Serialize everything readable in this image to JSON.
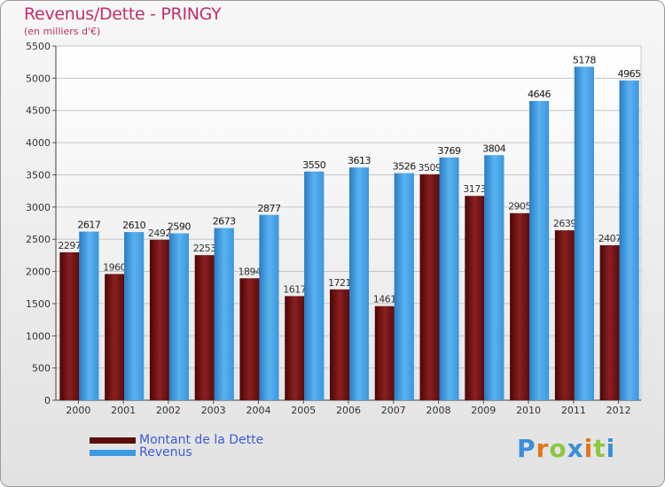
{
  "title": "Revenus/Dette - PRINGY",
  "subtitle": "(en milliers d'€)",
  "logo": "Proxiti",
  "colors": {
    "dette": "#7a1a1a",
    "revenus": "#3b9be0",
    "title": "#c0306a",
    "legend_text": "#3e5bd6"
  },
  "chart_data": {
    "type": "bar",
    "categories": [
      "2000",
      "2001",
      "2002",
      "2003",
      "2004",
      "2005",
      "2006",
      "2007",
      "2008",
      "2009",
      "2010",
      "2011",
      "2012"
    ],
    "series": [
      {
        "name": "Montant de la Dette",
        "values": [
          2297,
          1960,
          2492,
          2253,
          1894,
          1617,
          1721,
          1461,
          3509,
          3173,
          2905,
          2639,
          2407
        ],
        "labels": [
          "2297",
          "1960",
          "2492",
          "2253",
          "1894",
          "1617",
          "1721",
          "1461",
          "3509",
          "3173",
          "2905",
          "2639",
          "2407"
        ]
      },
      {
        "name": "Revenus",
        "values": [
          2617,
          2610,
          2590,
          2673,
          2877,
          3550,
          3613,
          3526,
          3769,
          3804,
          4646,
          5178,
          4965
        ],
        "labels": [
          "2617",
          "2610",
          "2590",
          "2673",
          "2877",
          "3550",
          "3613",
          "3526",
          "3769",
          "3804",
          "4646",
          "5178",
          "4965"
        ]
      }
    ],
    "ylim": [
      0,
      5500
    ],
    "yticks": [
      0,
      500,
      1000,
      1500,
      2000,
      2500,
      3000,
      3500,
      4000,
      4500,
      5000,
      5500
    ],
    "grid": true,
    "legend": "bottom-left"
  }
}
